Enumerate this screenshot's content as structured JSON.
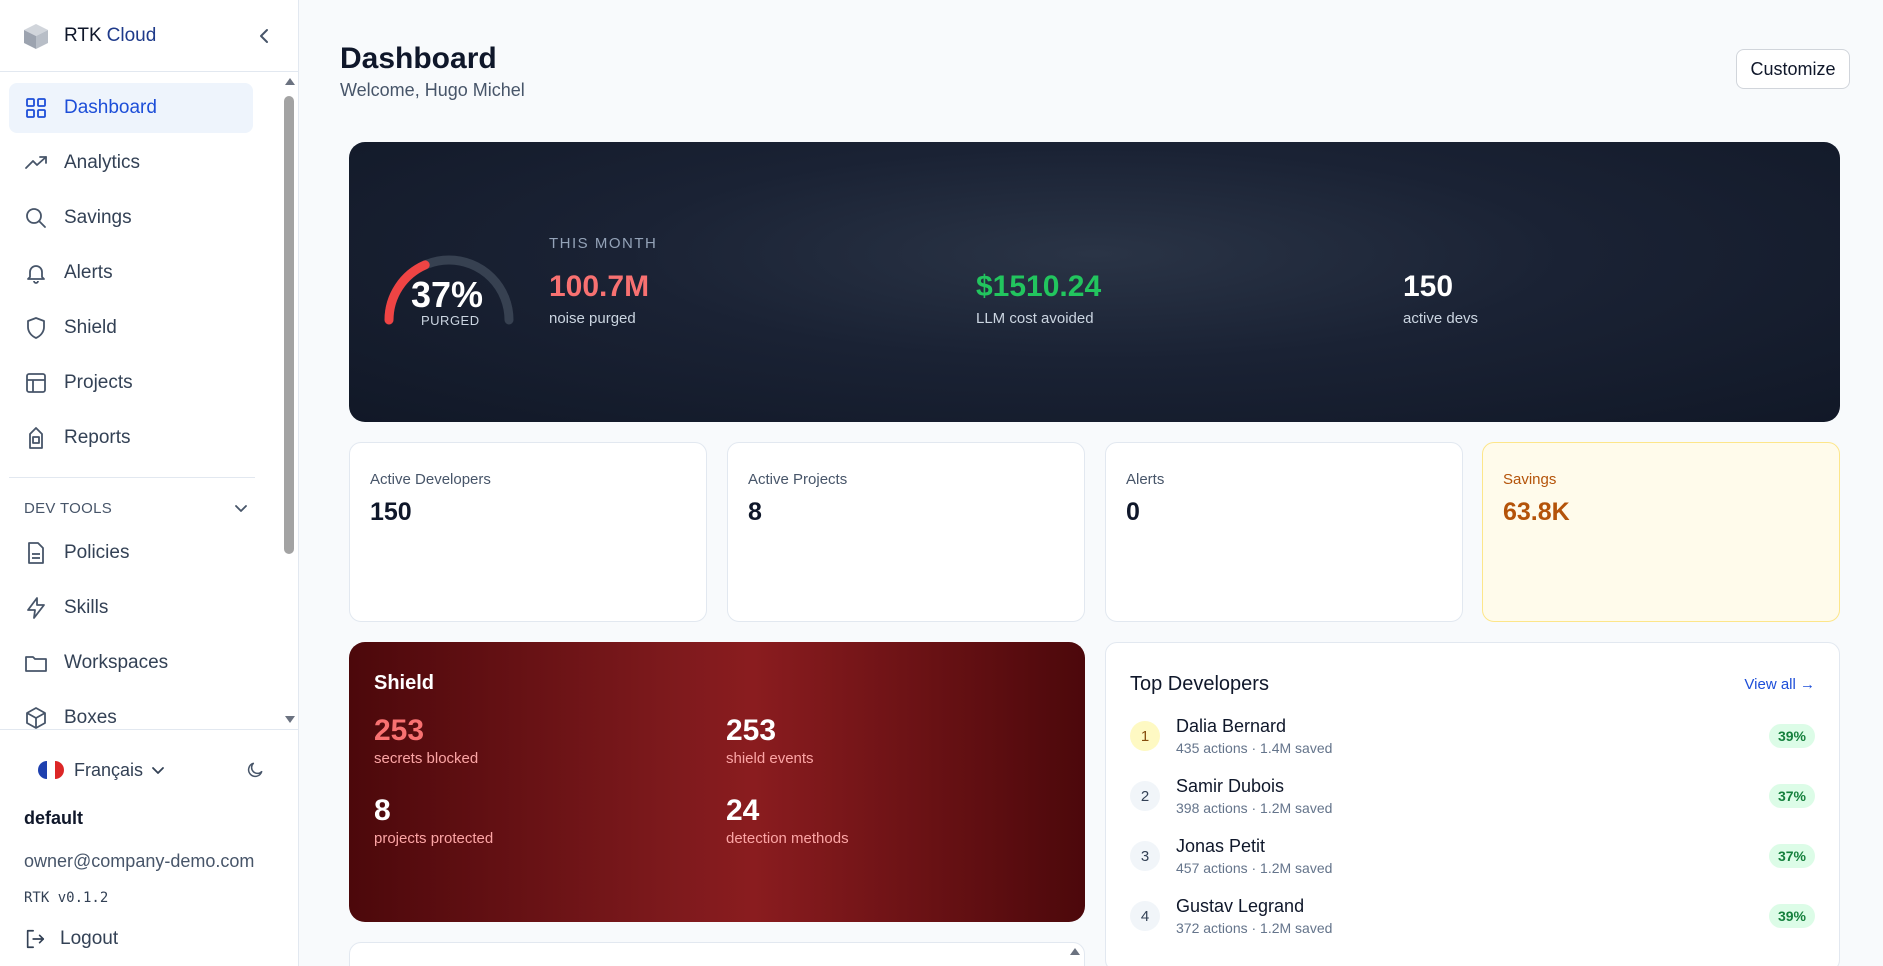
{
  "app": {
    "brand_main": "RTK",
    "brand_sub": "Cloud"
  },
  "sidebar": {
    "items": [
      {
        "label": "Dashboard",
        "icon": "grid-icon",
        "active": true
      },
      {
        "label": "Analytics",
        "icon": "trend-icon"
      },
      {
        "label": "Savings",
        "icon": "search-icon"
      },
      {
        "label": "Alerts",
        "icon": "bell-icon"
      },
      {
        "label": "Shield",
        "icon": "shield-icon"
      },
      {
        "label": "Projects",
        "icon": "table-icon"
      },
      {
        "label": "Reports",
        "icon": "report-icon"
      }
    ],
    "dev_tools_label": "DEV TOOLS",
    "dev_tools": [
      {
        "label": "Policies",
        "icon": "file-icon"
      },
      {
        "label": "Skills",
        "icon": "bolt-icon"
      },
      {
        "label": "Workspaces",
        "icon": "folder-icon"
      },
      {
        "label": "Boxes",
        "icon": "box-icon"
      }
    ],
    "footer": {
      "language": "Français",
      "org": "default",
      "email": "owner@company-demo.com",
      "version": "RTK v0.1.2",
      "logout": "Logout"
    }
  },
  "header": {
    "title": "Dashboard",
    "welcome": "Welcome, Hugo Michel",
    "customize": "Customize"
  },
  "hero": {
    "gauge_pct": "37%",
    "gauge_value": 0.37,
    "gauge_label": "PURGED",
    "period": "THIS MONTH",
    "stats": [
      {
        "value": "100.7M",
        "label": "noise purged",
        "color": "#f87171"
      },
      {
        "value": "$1510.24",
        "label": "LLM cost avoided",
        "color": "#22c55e"
      },
      {
        "value": "150",
        "label": "active devs",
        "color": "#ffffff"
      }
    ]
  },
  "kpis": [
    {
      "label": "Active Developers",
      "value": "150"
    },
    {
      "label": "Active Projects",
      "value": "8"
    },
    {
      "label": "Alerts",
      "value": "0"
    },
    {
      "label": "Savings",
      "value": "63.8K"
    }
  ],
  "shield": {
    "title": "Shield",
    "stats": [
      {
        "value": "253",
        "label": "secrets blocked"
      },
      {
        "value": "253",
        "label": "shield events"
      },
      {
        "value": "8",
        "label": "projects protected"
      },
      {
        "value": "24",
        "label": "detection methods"
      }
    ]
  },
  "top_developers": {
    "title": "Top Developers",
    "view_all": "View all →",
    "rows": [
      {
        "rank": "1",
        "name": "Dalia Bernard",
        "sub": "435 actions · 1.4M saved",
        "pct": "39%"
      },
      {
        "rank": "2",
        "name": "Samir Dubois",
        "sub": "398 actions · 1.2M saved",
        "pct": "37%"
      },
      {
        "rank": "3",
        "name": "Jonas Petit",
        "sub": "457 actions · 1.2M saved",
        "pct": "37%"
      },
      {
        "rank": "4",
        "name": "Gustav Legrand",
        "sub": "372 actions · 1.2M saved",
        "pct": "39%"
      }
    ]
  }
}
